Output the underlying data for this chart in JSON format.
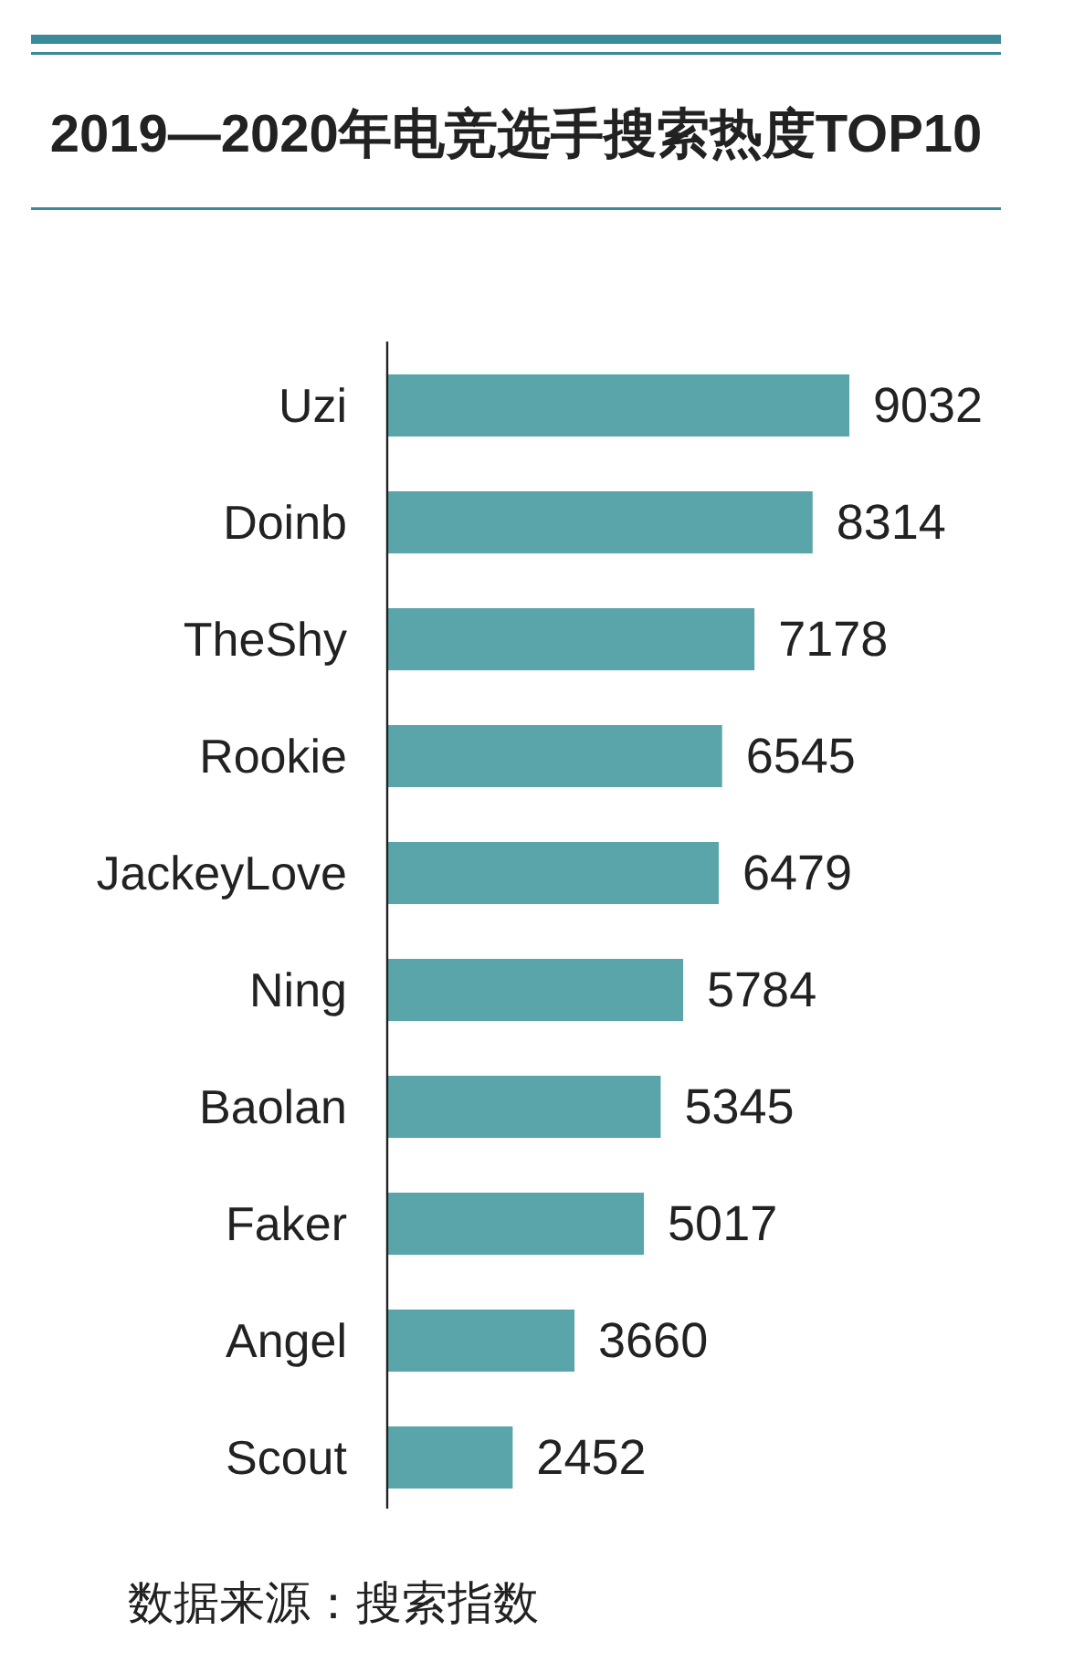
{
  "chart_data": {
    "type": "bar",
    "orientation": "horizontal",
    "title": "2019—2020年电竞选手搜索热度TOP10",
    "categories": [
      "Uzi",
      "Doinb",
      "TheShy",
      "Rookie",
      "JackeyLove",
      "Ning",
      "Baolan",
      "Faker",
      "Angel",
      "Scout"
    ],
    "values": [
      9032,
      8314,
      7178,
      6545,
      6479,
      5784,
      5345,
      5017,
      3660,
      2452
    ],
    "color": "#5aa5a9",
    "data_labels": true,
    "annotations": [
      "数据来源：搜索指数"
    ]
  }
}
